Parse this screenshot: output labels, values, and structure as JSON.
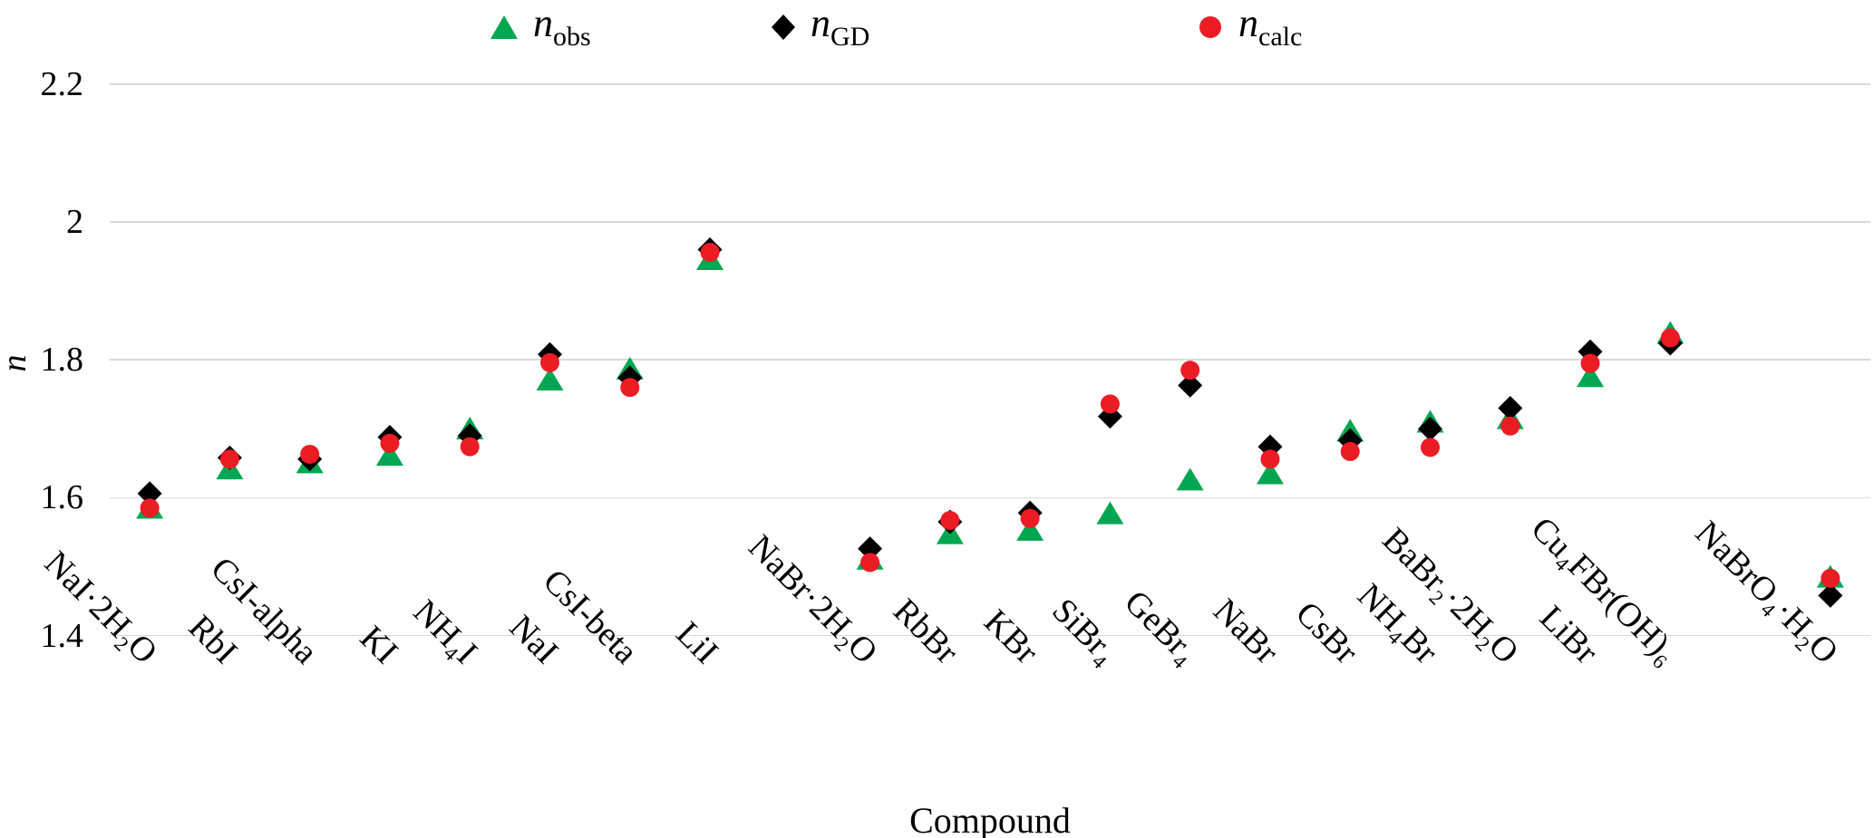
{
  "colors": {
    "obs_green": "#00A651",
    "gd_black": "#000000",
    "calc_red": "#EC1C24",
    "gridline": "#D9D9D9",
    "text": "#000000"
  },
  "legend": {
    "items": [
      {
        "name": "n_obs",
        "symbol": "n",
        "subscript": "obs",
        "marker": "triangle"
      },
      {
        "name": "n_GD",
        "symbol": "n",
        "subscript": "GD",
        "marker": "diamond"
      },
      {
        "name": "n_calc",
        "symbol": "n",
        "subscript": "calc",
        "marker": "circle"
      }
    ]
  },
  "chart_data": {
    "type": "scatter",
    "title": "",
    "xlabel": "Compound",
    "ylabel": "n",
    "ylim": [
      1.4,
      2.2
    ],
    "yticks": [
      2.2,
      2.0,
      1.8,
      1.6,
      1.4
    ],
    "ytick_labels": [
      "2.2",
      "2",
      "1.8",
      "1.6",
      "1.4"
    ],
    "grid": "horizontal",
    "legend_position": "top",
    "num_slots": 22,
    "categories": [
      {
        "label": "NaI·2H₂O",
        "slot": 0
      },
      {
        "label": "RbI",
        "slot": 1
      },
      {
        "label": "CsI-alpha",
        "slot": 2
      },
      {
        "label": "KI",
        "slot": 3
      },
      {
        "label": "NH₄I",
        "slot": 4
      },
      {
        "label": "NaI",
        "slot": 5
      },
      {
        "label": "CsI-beta",
        "slot": 6
      },
      {
        "label": "LiI",
        "slot": 7
      },
      {
        "label": "NaBr·2H₂O",
        "slot": 9
      },
      {
        "label": "RbBr",
        "slot": 10
      },
      {
        "label": "KBr",
        "slot": 11
      },
      {
        "label": "SiBr₄",
        "slot": 12
      },
      {
        "label": "GeBr₄",
        "slot": 13
      },
      {
        "label": "NaBr",
        "slot": 14
      },
      {
        "label": "CsBr",
        "slot": 15
      },
      {
        "label": "NH₄Br",
        "slot": 16
      },
      {
        "label": "BaBr₂·2H₂O",
        "slot": 17
      },
      {
        "label": "LiBr",
        "slot": 18
      },
      {
        "label": "Cu₄FBr(OH)₆",
        "slot": 19
      },
      {
        "label": "NaBrO₄·H₂O",
        "slot": 21
      }
    ],
    "series": [
      {
        "name": "n_obs",
        "symbol": "n",
        "subscript": "obs",
        "marker": "triangle",
        "color": "#00A651",
        "values": [
          1.586,
          1.643,
          1.652,
          1.663,
          1.701,
          1.772,
          1.788,
          1.947,
          1.512,
          1.549,
          1.554,
          1.578,
          1.627,
          1.636,
          1.698,
          1.711,
          1.716,
          1.777,
          1.84,
          1.486
        ]
      },
      {
        "name": "n_GD",
        "symbol": "n",
        "subscript": "GD",
        "marker": "diamond",
        "color": "#000000",
        "values": [
          1.606,
          1.658,
          1.656,
          1.688,
          1.69,
          1.808,
          1.774,
          1.96,
          1.526,
          1.565,
          1.578,
          1.718,
          1.763,
          1.674,
          1.683,
          1.7,
          1.73,
          1.812,
          1.824,
          1.458
        ]
      },
      {
        "name": "n_calc",
        "symbol": "n",
        "subscript": "calc",
        "marker": "circle",
        "color": "#EC1C24",
        "values": [
          1.585,
          1.656,
          1.663,
          1.679,
          1.674,
          1.796,
          1.76,
          1.956,
          1.506,
          1.567,
          1.57,
          1.736,
          1.785,
          1.656,
          1.667,
          1.673,
          1.704,
          1.795,
          1.832,
          1.483
        ]
      }
    ]
  }
}
